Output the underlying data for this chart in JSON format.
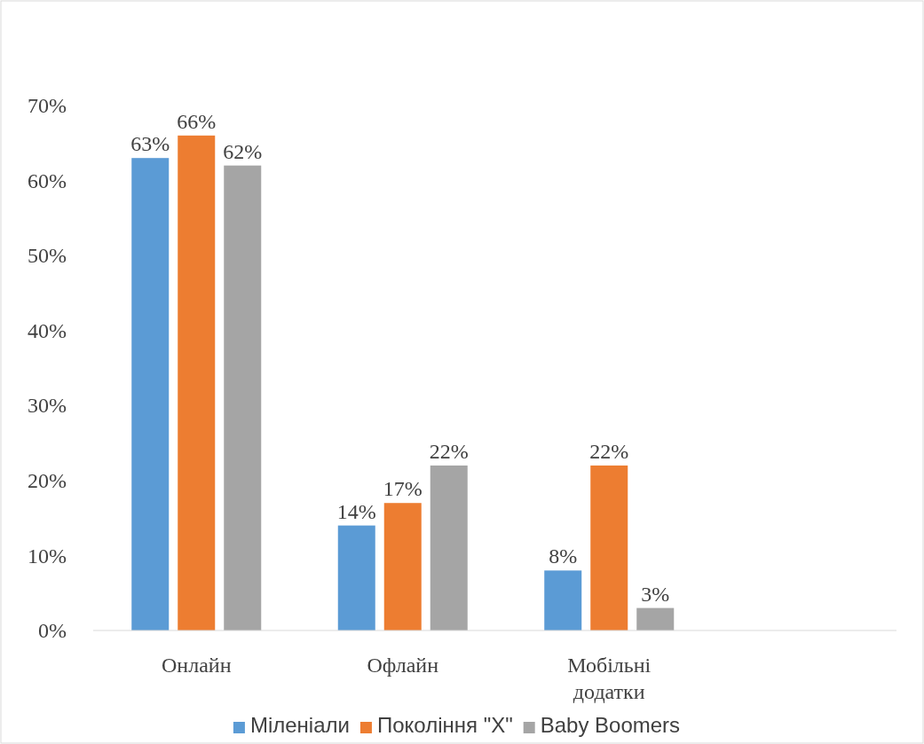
{
  "chart_data": {
    "type": "bar",
    "categories": [
      "Онлайн",
      "Офлайн",
      "Мобільні додатки",
      null
    ],
    "series": [
      {
        "name": "Міленіали",
        "color": "#5b9bd5",
        "values": [
          63,
          14,
          8,
          null
        ],
        "value_labels": [
          "63%",
          "14%",
          "8%",
          null
        ]
      },
      {
        "name": "Покоління \"X\"",
        "color": "#ed7d31",
        "values": [
          66,
          17,
          22,
          null
        ],
        "value_labels": [
          "66%",
          "17%",
          "22%",
          null
        ]
      },
      {
        "name": "Baby Boomers",
        "color": "#a5a5a5",
        "values": [
          62,
          22,
          3,
          null
        ],
        "value_labels": [
          "62%",
          "22%",
          "3%",
          null
        ]
      }
    ],
    "ylim": [
      0,
      70
    ],
    "yticks": [
      {
        "value": 0,
        "label": "0%"
      },
      {
        "value": 10,
        "label": "10%"
      },
      {
        "value": 20,
        "label": "20%"
      },
      {
        "value": 30,
        "label": "30%"
      },
      {
        "value": 40,
        "label": "40%"
      },
      {
        "value": 50,
        "label": "50%"
      },
      {
        "value": 60,
        "label": "60%"
      },
      {
        "value": 70,
        "label": "70%"
      }
    ],
    "grid": false,
    "legend": "bottom"
  }
}
